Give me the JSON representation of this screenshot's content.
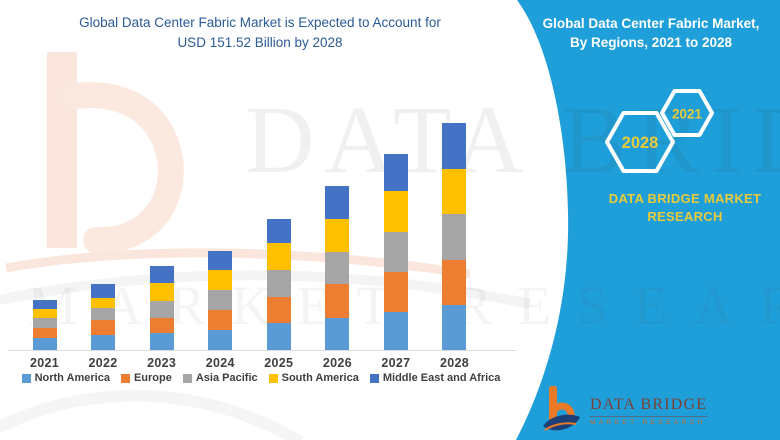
{
  "chart": {
    "title_line1": "Global Data Center Fabric Market is Expected to Account for",
    "title_line2": "USD 151.52 Billion by 2028",
    "title_color": "#2a5b95"
  },
  "panel": {
    "title_line1": "Global Data Center Fabric Market,",
    "title_line2": "By Regions, 2021 to 2028",
    "hex_small_label": "2021",
    "hex_large_label": "2028",
    "brand_line1": "DATA BRIDGE MARKET",
    "brand_line2": "RESEARCH",
    "background_color": "#1f9fd9",
    "accent_text_color": "#e8ca3a"
  },
  "footer_logo": {
    "glyph": "b",
    "name": "DATA BRIDGE",
    "subtitle": "MARKET RESEARCH",
    "glyph_color": "#e87a28",
    "swoosh_color": "#1c3f77",
    "name_color": "#7d4036",
    "subtitle_color": "#cd6b2d"
  },
  "watermark": {
    "line1": "DATA BRIDGE",
    "line2": "MARKET RESEARCH"
  },
  "chart_data": {
    "type": "bar",
    "stacked": true,
    "title": "Global Data Center Fabric Market, By Regions, 2021 to 2028",
    "unit": "USD Billion",
    "categories": [
      "2021",
      "2022",
      "2023",
      "2024",
      "2025",
      "2026",
      "2027",
      "2028"
    ],
    "series": [
      {
        "name": "North America",
        "color": "#5B9BD5",
        "values": [
          8.2,
          10.0,
          11.6,
          13.4,
          17.8,
          21.2,
          25.6,
          30.1
        ]
      },
      {
        "name": "Europe",
        "color": "#ED7D31",
        "values": [
          6.7,
          10.0,
          9.6,
          13.4,
          17.4,
          22.9,
          26.7,
          30.1
        ]
      },
      {
        "name": "Asia Pacific",
        "color": "#A5A5A5",
        "values": [
          6.2,
          7.8,
          11.8,
          13.4,
          18.2,
          21.2,
          26.3,
          30.7
        ]
      },
      {
        "name": "South America",
        "color": "#FFC000",
        "values": [
          6.0,
          6.7,
          11.6,
          13.4,
          17.8,
          22.3,
          27.2,
          30.1
        ]
      },
      {
        "name": "Middle East and Africa",
        "color": "#4472C4",
        "values": [
          6.2,
          9.6,
          11.2,
          12.2,
          16.0,
          21.6,
          24.7,
          30.5
        ]
      }
    ],
    "totals": [
      33.3,
      44.1,
      55.8,
      65.8,
      87.2,
      109.2,
      130.5,
      151.52
    ],
    "annotation_2028_total": "USD 151.52 Billion",
    "legend_position": "bottom",
    "axes_hidden": true,
    "gridlines": false,
    "ylim": [
      0,
      152
    ]
  }
}
